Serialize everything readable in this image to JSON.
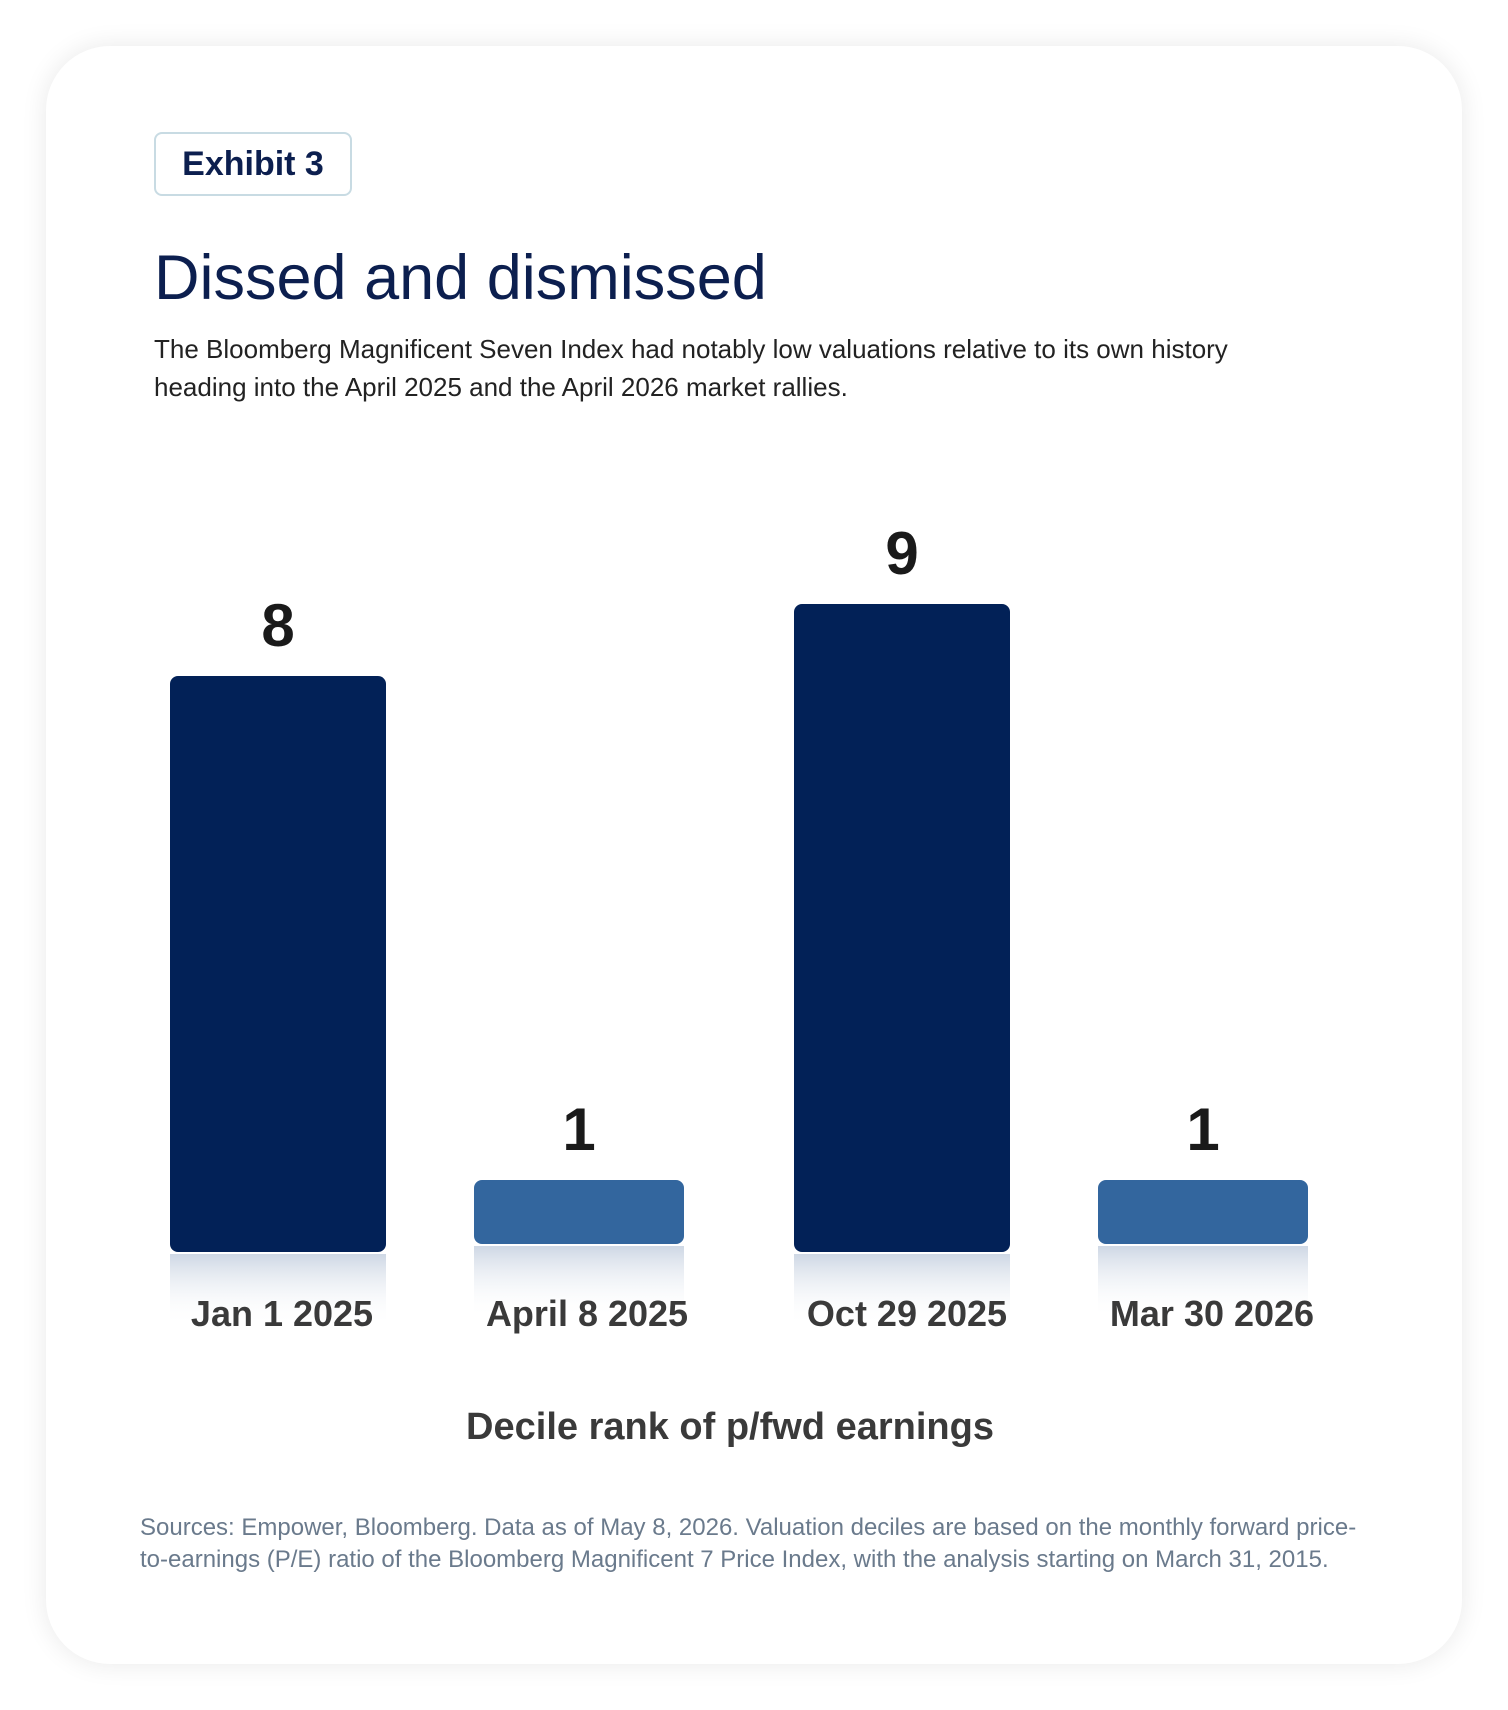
{
  "exhibit_label": "Exhibit 3",
  "title": "Dissed and dismissed",
  "subtitle": "The Bloomberg Magnificent Seven Index had notably low valuations relative to its own history heading into the April 2025 and the April 2026 market rallies.",
  "sources": "Sources: Empower, Bloomberg. Data as of May 8, 2026. Valuation deciles are based on the monthly forward price-to-earnings (P/E) ratio of the Bloomberg Magnificent 7 Price Index, with the analysis starting on March 31, 2015.",
  "colors": {
    "dark_bar": "#022157",
    "light_bar": "#33669e",
    "title": "#0c1f4f",
    "value_label": "#1a1a1a",
    "category_label": "#3a3a3a"
  },
  "chart_data": {
    "type": "bar",
    "title": "Dissed and dismissed",
    "xlabel": "Decile rank of p/fwd earnings",
    "ylabel": "",
    "categories": [
      "Jan 1 2025",
      "April 8 2025",
      "Oct 29 2025",
      "Mar 30 2026"
    ],
    "values": [
      8,
      1,
      9,
      1
    ],
    "value_labels": [
      "8",
      "1",
      "9",
      "1"
    ],
    "bar_colors": [
      "#022157",
      "#33669e",
      "#022157",
      "#33669e"
    ],
    "ylim": [
      0,
      10
    ],
    "grid": false,
    "legend": "none"
  }
}
